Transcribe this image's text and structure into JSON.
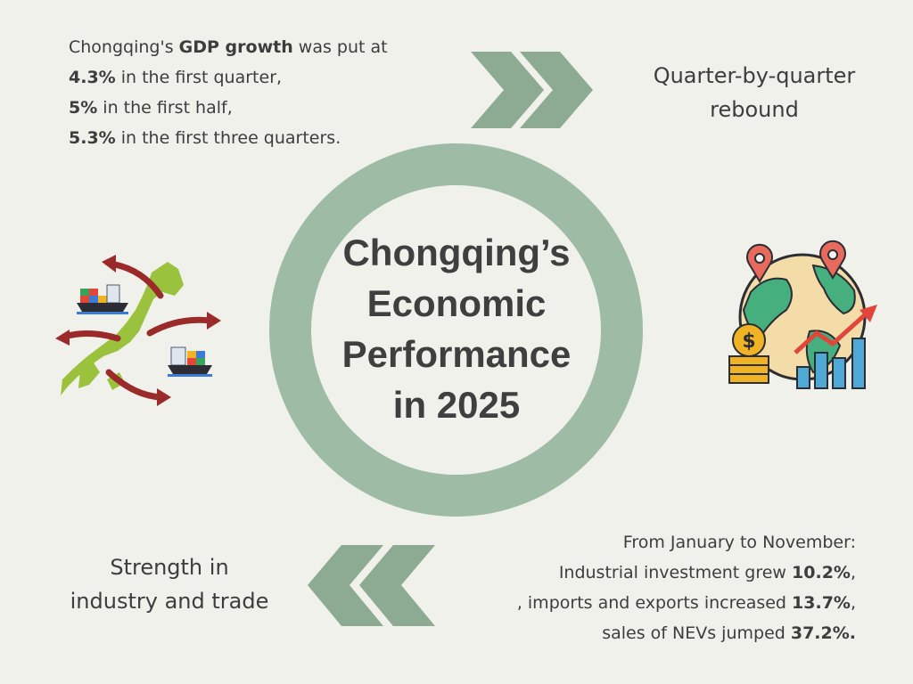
{
  "title": {
    "line1": "Chongqing’s",
    "line2": "Economic",
    "line3": "Performance",
    "line4": "in 2025"
  },
  "gdp": {
    "pre": "Chongqing's ",
    "bold": "GDP growth",
    "post": " was put at",
    "q1_value": "4.3%",
    "q1_text": " in the first quarter,",
    "h1_value": "5%",
    "h1_text": " in the first half,",
    "q3_value": "5.3%",
    "q3_text": " in the first three quarters."
  },
  "rebound": {
    "line1": "Quarter-by-quarter",
    "line2": "rebound"
  },
  "strength": {
    "line1": "Strength in",
    "line2": "industry and trade"
  },
  "industry": {
    "heading": "From January to November:",
    "inv_text": "Industrial investment grew ",
    "inv_value": "10.2%",
    "inv_end": ",",
    "trade_text": ", imports and exports increased ",
    "trade_value": "13.7%",
    "trade_end": ",",
    "nev_text": "sales of NEVs jumped ",
    "nev_value": "37.2%."
  },
  "colors": {
    "background": "#f1f1eb",
    "ring": "#9dbba5",
    "chevron": "#8daa93",
    "text": "#3d3d3d"
  },
  "icons": {
    "trade": "japan-trade-map-icon",
    "economy": "globe-growth-chart-icon",
    "forward": "double-chevron-right-icon",
    "back": "double-chevron-left-icon"
  }
}
